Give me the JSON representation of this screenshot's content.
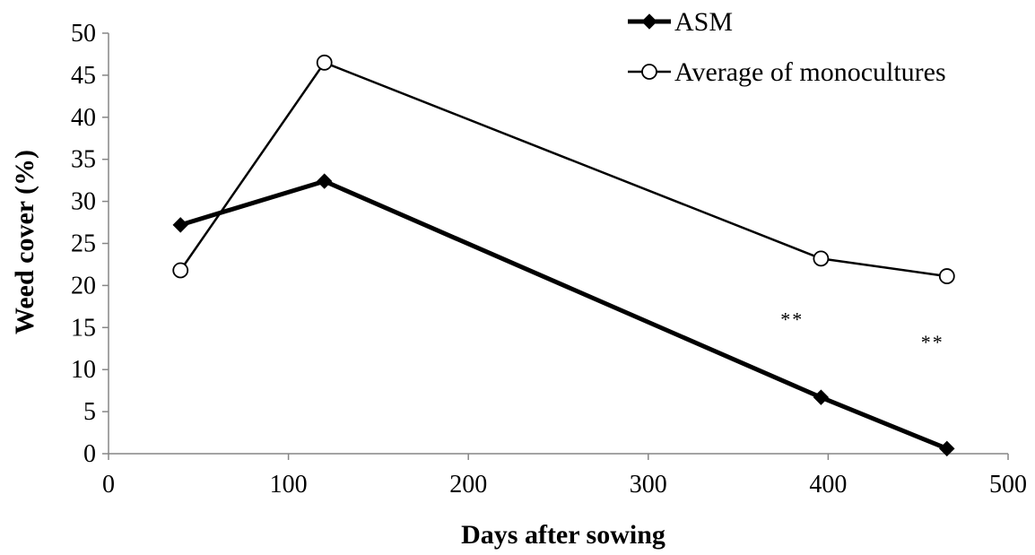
{
  "chart_data": {
    "type": "line",
    "title": "",
    "xlabel": "Days after sowing",
    "ylabel": "Weed cover (%)",
    "xlim": [
      0,
      500
    ],
    "ylim": [
      0,
      50
    ],
    "x_ticks": [
      0,
      100,
      200,
      300,
      400,
      500
    ],
    "y_ticks": [
      0,
      5,
      10,
      15,
      20,
      25,
      30,
      35,
      40,
      45,
      50
    ],
    "grid": false,
    "legend_position": "top-right",
    "series": [
      {
        "name": "ASM",
        "marker": "filled-diamond",
        "color": "#000000",
        "x": [
          40,
          120,
          396,
          466
        ],
        "y": [
          27.2,
          32.4,
          6.7,
          0.6
        ]
      },
      {
        "name": "Average of monocultures",
        "marker": "open-circle",
        "color": "#000000",
        "x": [
          40,
          120,
          396,
          466
        ],
        "y": [
          21.8,
          46.5,
          23.2,
          21.1
        ]
      }
    ],
    "annotations": [
      {
        "text": "**",
        "x": 380,
        "y": 15.2
      },
      {
        "text": "**",
        "x": 458,
        "y": 12.5
      }
    ]
  }
}
